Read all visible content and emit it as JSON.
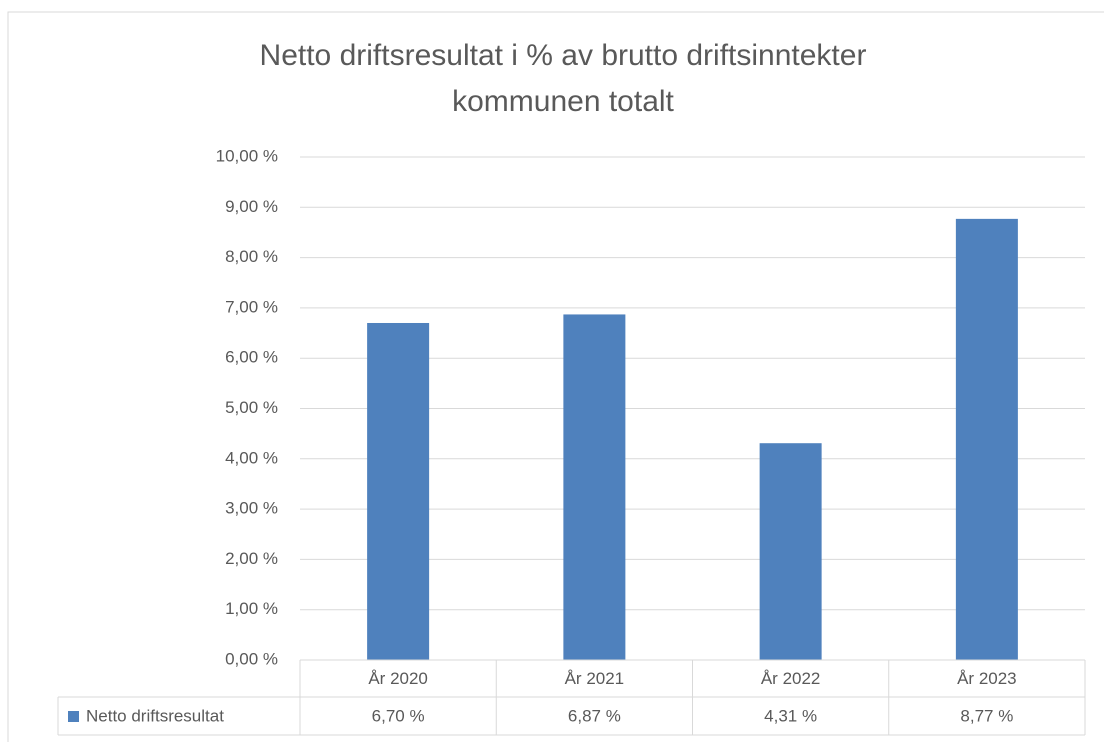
{
  "chart_data": {
    "type": "bar",
    "title": [
      "Netto driftsresultat i % av brutto driftsinntekter",
      "kommunen totalt"
    ],
    "categories": [
      "År 2020",
      "År 2021",
      "År 2022",
      "År 2023"
    ],
    "series": [
      {
        "name": "Netto driftsresultat",
        "color": "#4f81bd",
        "values": [
          6.7,
          6.87,
          4.31,
          8.77
        ],
        "value_labels": [
          "6,70 %",
          "6,87 %",
          "4,31 %",
          "8,77 %"
        ]
      }
    ],
    "ylim": [
      0,
      10
    ],
    "yticks": [
      {
        "value": 0,
        "label": "0,00 %"
      },
      {
        "value": 1,
        "label": "1,00 %"
      },
      {
        "value": 2,
        "label": "2,00 %"
      },
      {
        "value": 3,
        "label": "3,00 %"
      },
      {
        "value": 4,
        "label": "4,00 %"
      },
      {
        "value": 5,
        "label": "5,00 %"
      },
      {
        "value": 6,
        "label": "6,00 %"
      },
      {
        "value": 7,
        "label": "7,00 %"
      },
      {
        "value": 8,
        "label": "8,00 %"
      },
      {
        "value": 9,
        "label": "9,00 %"
      },
      {
        "value": 10,
        "label": "10,00 %"
      }
    ],
    "grid": true
  }
}
